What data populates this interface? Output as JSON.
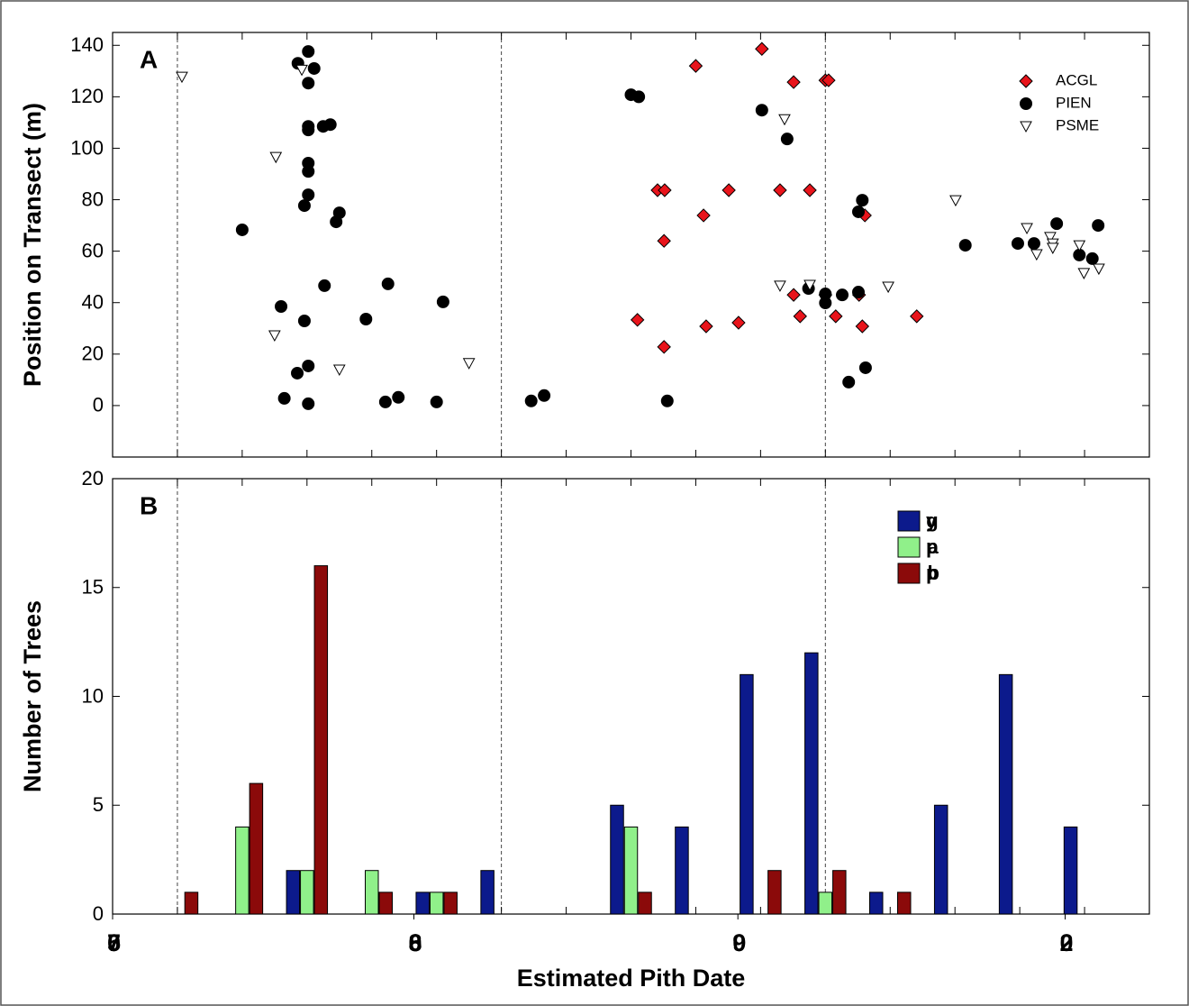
{
  "chart_data": [
    {
      "type": "scatter",
      "panel_label": "A",
      "ylabel": "Position on Transect (m)",
      "xlim": [
        0,
        16
      ],
      "xminor": [
        1,
        2,
        3,
        4,
        5,
        6,
        7,
        8,
        9,
        10,
        11,
        12,
        13,
        14,
        15
      ],
      "vlines": [
        1,
        6,
        11
      ],
      "ylim": [
        -20,
        145
      ],
      "yticks": [
        0,
        20,
        40,
        60,
        80,
        100,
        120,
        140
      ],
      "series": [
        {
          "name": "ACGL",
          "marker": "diamond",
          "color": "#e8141b",
          "x": [
            9.0,
            10.02,
            10.51,
            11.0,
            11.05,
            8.41,
            8.52,
            9.51,
            10.3,
            10.76,
            9.12,
            8.51,
            11.61,
            8.1,
            9.16,
            9.66,
            10.51,
            10.61,
            11.0,
            11.16,
            11.52,
            11.57,
            12.41,
            8.51
          ],
          "values": [
            132,
            138.6,
            125.7,
            126.4,
            126.4,
            83.7,
            83.7,
            83.7,
            83.7,
            83.7,
            73.9,
            64,
            73.9,
            33.3,
            30.8,
            32.2,
            43,
            34.7,
            43,
            34.7,
            43,
            30.8,
            34.7,
            22.8
          ]
        },
        {
          "name": "PIEN",
          "marker": "circle",
          "color": "#000000",
          "x": [
            3.02,
            2.86,
            3.11,
            3.02,
            3.02,
            3.02,
            3.25,
            3.36,
            3.02,
            3.02,
            3.02,
            2.96,
            3.5,
            3.45,
            2.0,
            3.27,
            4.25,
            2.6,
            2.96,
            3.91,
            5.1,
            2.85,
            3.02,
            2.65,
            3.02,
            4.21,
            4.41,
            5.0,
            6.46,
            6.66,
            8.56,
            8.0,
            8.12,
            10.02,
            10.41,
            11.57,
            11.51,
            10.74,
            11.0,
            11.0,
            11.26,
            11.51,
            11.36,
            11.62,
            13.16,
            13.97,
            14.22,
            14.57,
            15.21,
            14.92,
            15.12
          ],
          "values": [
            137.6,
            133,
            131,
            125.3,
            108.5,
            107.1,
            108.5,
            109.2,
            94.2,
            91,
            81.9,
            77.7,
            74.9,
            71.4,
            68.3,
            46.6,
            47.3,
            38.5,
            32.9,
            33.6,
            40.3,
            12.6,
            15.4,
            2.8,
            0.7,
            1.4,
            3.2,
            1.4,
            1.8,
            3.9,
            1.8,
            120.8,
            120,
            114.8,
            103.6,
            79.8,
            75.3,
            45.5,
            43.4,
            39.9,
            43,
            44.1,
            9.1,
            14.7,
            62.3,
            63,
            63,
            70.7,
            70,
            58.5,
            57.1
          ]
        },
        {
          "name": "PSME",
          "marker": "triangle",
          "color": "#ffffff",
          "x": [
            1.07,
            2.52,
            2.92,
            2.5,
            3.5,
            5.5,
            10.3,
            10.76,
            10.37,
            11.97,
            13.01,
            14.11,
            14.26,
            14.47,
            14.51,
            14.51,
            14.92,
            14.99,
            15.22
          ],
          "values": [
            127.8,
            96.6,
            130.5,
            27.3,
            14,
            16.5,
            46.6,
            46.9,
            111.3,
            46.2,
            79.8,
            69,
            58.8,
            65.5,
            63,
            61.3,
            62.3,
            51.5,
            53.2
          ]
        }
      ]
    },
    {
      "type": "bar",
      "panel_label": "B",
      "ylabel": "Number of Trees",
      "xlabel": "Estimated Pith Date",
      "xlim": [
        0,
        16
      ],
      "xminor": [
        1,
        2,
        3,
        4,
        5,
        6,
        7,
        8,
        9,
        10,
        11,
        12,
        13,
        14,
        15
      ],
      "vlines": [
        1,
        6,
        11
      ],
      "xticks": [
        {
          "value": 0,
          "label": "750"
        },
        {
          "value": 4.65,
          "label": "680"
        },
        {
          "value": 9.65,
          "label": "90"
        },
        {
          "value": 14.7,
          "label": "20"
        }
      ],
      "ylim": [
        0,
        20
      ],
      "yticks": [
        0,
        5,
        10,
        15,
        20
      ],
      "x": [
        0,
        1,
        2,
        3,
        4,
        5,
        6,
        7,
        8,
        9,
        10,
        11,
        12,
        13,
        14,
        15,
        16
      ],
      "series": [
        {
          "name": "yg",
          "color": "#0c1a8c",
          "values": [
            0,
            0,
            0,
            2,
            0,
            1,
            2,
            0,
            5,
            4,
            11,
            12,
            1,
            5,
            11,
            4,
            0
          ]
        },
        {
          "name": "pa",
          "color": "#90f08a",
          "values": [
            0,
            0,
            4,
            2,
            2,
            1,
            0,
            0,
            4,
            0,
            0,
            1,
            0,
            0,
            0,
            0,
            0
          ]
        },
        {
          "name": "pb",
          "color": "#8b0a0a",
          "values": [
            0,
            1,
            6,
            16,
            1,
            1,
            0,
            0,
            1,
            0,
            2,
            2,
            1,
            0,
            0,
            0,
            0
          ]
        }
      ]
    }
  ]
}
